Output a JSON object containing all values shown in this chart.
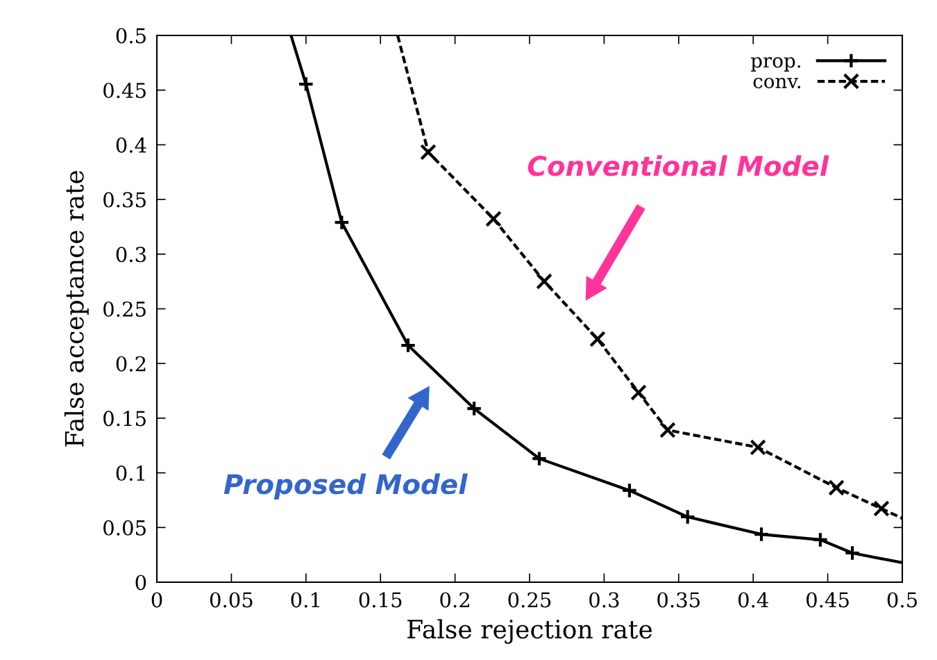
{
  "chart_data": {
    "type": "line",
    "xlabel": "False rejection rate",
    "ylabel": "False acceptance rate",
    "xlim": [
      0,
      0.5
    ],
    "ylim": [
      0,
      0.5
    ],
    "xticks": [
      0,
      0.05,
      0.1,
      0.15,
      0.2,
      0.25,
      0.3,
      0.35,
      0.4,
      0.45,
      0.5
    ],
    "yticks": [
      0,
      0.05,
      0.1,
      0.15,
      0.2,
      0.25,
      0.3,
      0.35,
      0.4,
      0.45,
      0.5
    ],
    "legend": "top right",
    "grid": false,
    "series": [
      {
        "name": "prop.",
        "color": "#000000",
        "marker": "plus",
        "line_style": "solid",
        "x": [
          0.09,
          0.1,
          0.124,
          0.1685,
          0.2128,
          0.2565,
          0.317,
          0.356,
          0.4055,
          0.445,
          0.4665,
          0.5
        ],
        "values": [
          0.5,
          0.4555,
          0.329,
          0.2166,
          0.1588,
          0.113,
          0.0839,
          0.0597,
          0.0438,
          0.0388,
          0.0267,
          0.0178
        ]
      },
      {
        "name": "conv.",
        "color": "#000000",
        "marker": "cross",
        "line_style": "dashed",
        "x": [
          0.1615,
          0.182,
          0.2258,
          0.2598,
          0.2956,
          0.3231,
          0.3426,
          0.4032,
          0.4558,
          0.486,
          0.5
        ],
        "values": [
          0.5,
          0.3933,
          0.3323,
          0.2751,
          0.2224,
          0.1734,
          0.1391,
          0.1233,
          0.0864,
          0.0673,
          0.0584
        ]
      }
    ],
    "annotations": [
      "Conventional Model",
      "Proposed Model"
    ]
  }
}
